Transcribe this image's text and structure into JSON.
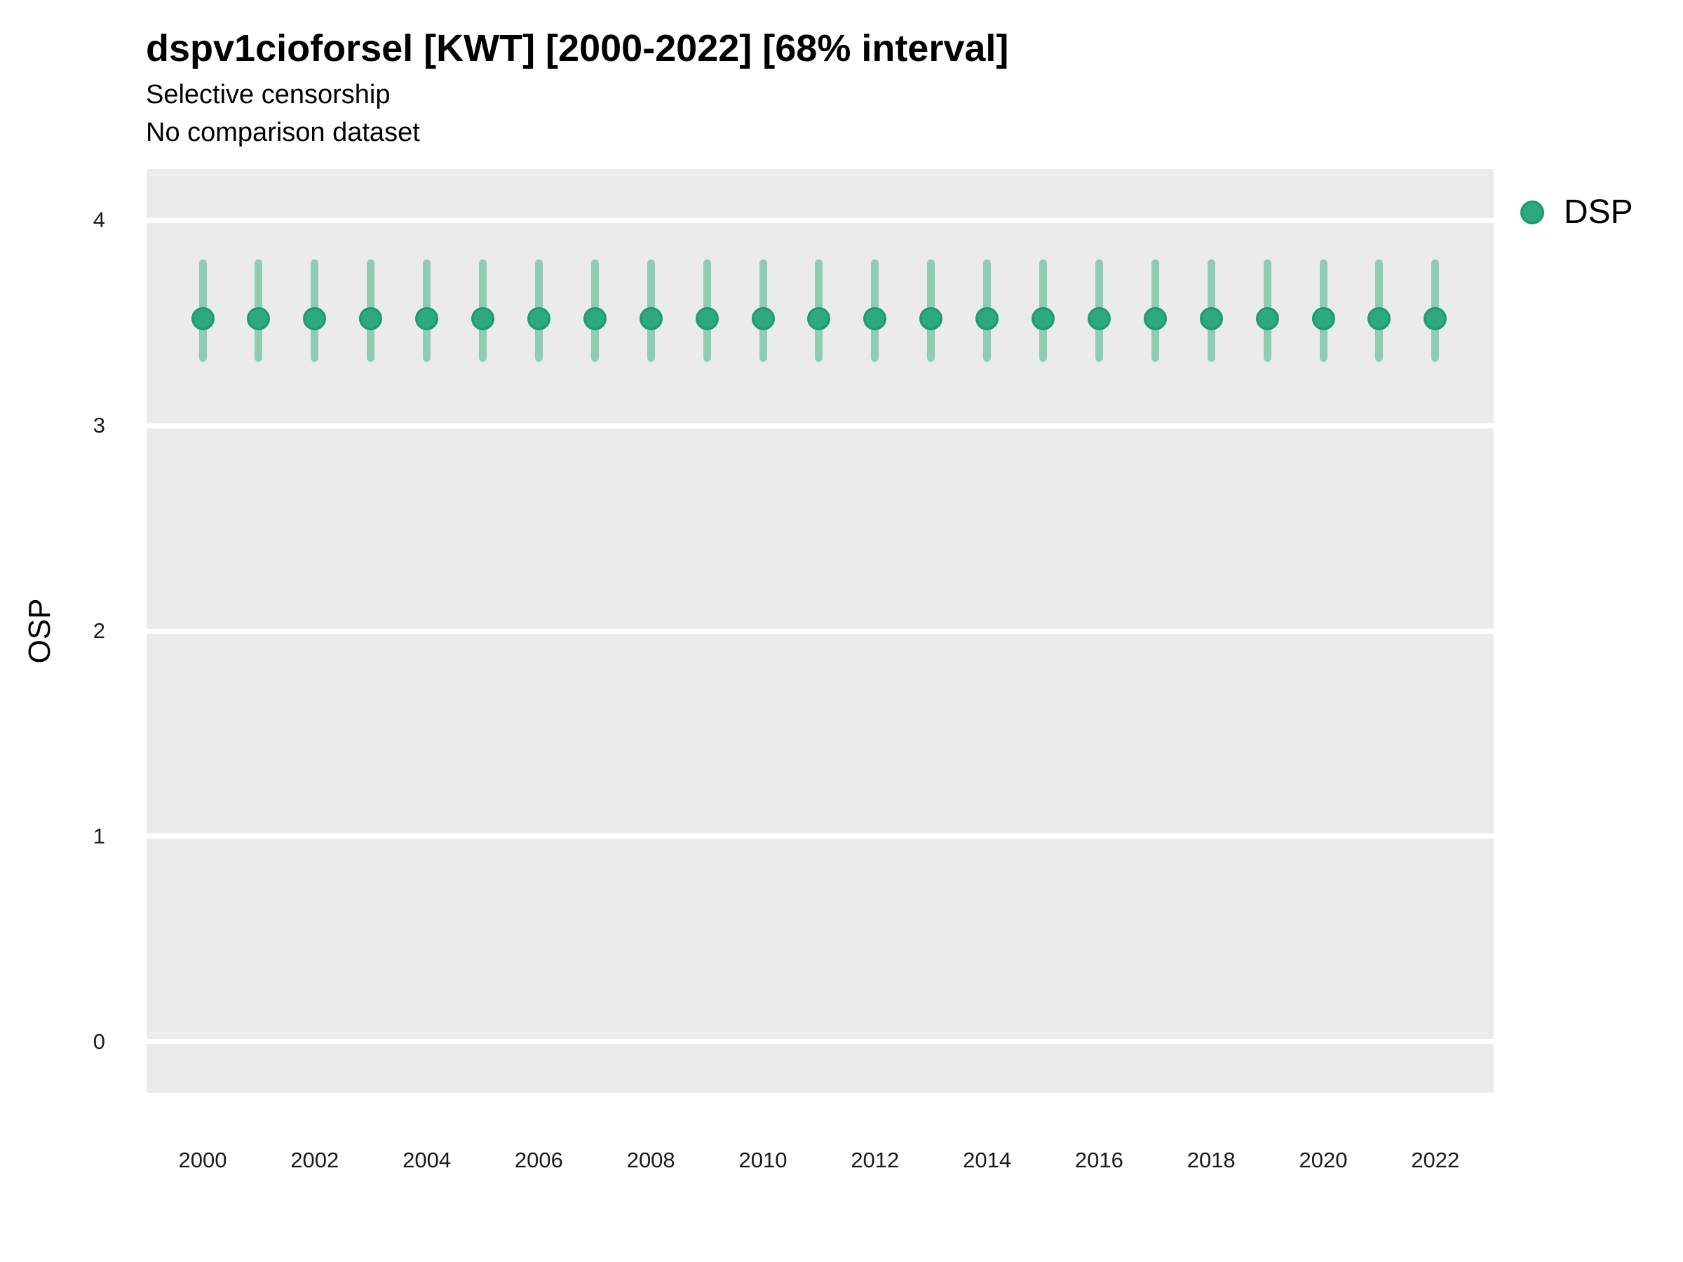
{
  "title": "dspv1cioforsel [KWT] [2000-2022] [68% interval]",
  "subtitle_line1": "Selective censorship",
  "subtitle_line2": "No comparison dataset",
  "legend": {
    "label": "DSP",
    "marker_color": "#2caa7e"
  },
  "axes": {
    "y_label": "OSP",
    "y_ticks": [
      4,
      3,
      2,
      1,
      0
    ],
    "x_tick_years": [
      2000,
      2002,
      2004,
      2006,
      2008,
      2010,
      2012,
      2014,
      2016,
      2018,
      2020,
      2022
    ]
  },
  "colors": {
    "point": "#2caa7e",
    "point_edge": "#1da177",
    "errorbar": "#8fccb4",
    "panel_bg": "#ebebeb",
    "gridline": "#ffffff",
    "tick_text": "#1a1a1a",
    "text": "#000000"
  },
  "chart_data": {
    "type": "scatter",
    "title": "dspv1cioforsel [KWT] [2000-2022] [68% interval]",
    "subtitle": "Selective censorship / No comparison dataset",
    "xlabel": "",
    "ylabel": "OSP",
    "interval": "68%",
    "ylim": [
      -0.25,
      4.25
    ],
    "grid": "horizontal-major-only",
    "legend_position": "right",
    "series": [
      {
        "name": "DSP",
        "x": [
          2000,
          2001,
          2002,
          2003,
          2004,
          2005,
          2006,
          2007,
          2008,
          2009,
          2010,
          2011,
          2012,
          2013,
          2014,
          2015,
          2016,
          2017,
          2018,
          2019,
          2020,
          2021,
          2022
        ],
        "y": [
          3.52,
          3.52,
          3.52,
          3.52,
          3.52,
          3.52,
          3.52,
          3.52,
          3.52,
          3.52,
          3.52,
          3.52,
          3.52,
          3.52,
          3.52,
          3.52,
          3.52,
          3.52,
          3.52,
          3.52,
          3.52,
          3.52,
          3.52
        ],
        "lo": [
          3.31,
          3.31,
          3.31,
          3.31,
          3.31,
          3.31,
          3.31,
          3.31,
          3.31,
          3.31,
          3.31,
          3.31,
          3.31,
          3.31,
          3.31,
          3.31,
          3.31,
          3.31,
          3.31,
          3.31,
          3.31,
          3.31,
          3.31
        ],
        "hi": [
          3.81,
          3.81,
          3.81,
          3.81,
          3.81,
          3.81,
          3.81,
          3.81,
          3.81,
          3.81,
          3.81,
          3.81,
          3.81,
          3.81,
          3.81,
          3.81,
          3.81,
          3.81,
          3.81,
          3.81,
          3.81,
          3.81,
          3.81
        ]
      }
    ]
  }
}
